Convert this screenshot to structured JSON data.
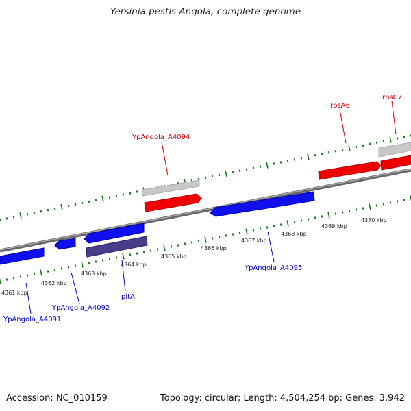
{
  "title": "Yersinia pestis Angola, complete genome",
  "footer": {
    "accession": "Accession: NC_010159",
    "stats": "Topology: circular; Length: 4,504,254 bp; Genes: 3,942"
  },
  "colors": {
    "forward_gene": "#ff0000",
    "reverse_gene": "#0000ff",
    "rna_gene": "#c8c8c8",
    "pseudo_gene": "#483d8b",
    "ticks": "#1a7a1a",
    "backbone": "#888888"
  },
  "scale_labels": [
    "4361 kbp",
    "4362 kbp",
    "4363 kbp",
    "4364 kbp",
    "4365 kbp",
    "4366 kbp",
    "4367 kbp",
    "4368 kbp",
    "4369 kbp",
    "4370 kbp"
  ],
  "gene_labels": {
    "forward": [
      "YpAngola_A4094",
      "rbsA6",
      "rbsC7"
    ],
    "reverse": [
      "YpAngola_A4091",
      "YpAngola_A4092",
      "pitA",
      "YpAngola_A4095"
    ]
  }
}
